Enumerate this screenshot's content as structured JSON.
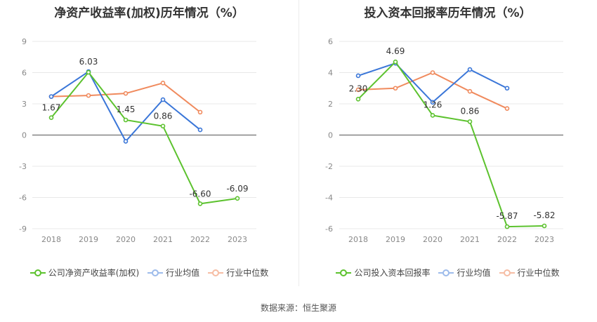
{
  "source": "数据来源：恒生聚源",
  "chart_data": [
    {
      "type": "line",
      "title": "净资产收益率(加权)历年情况（%）",
      "categories": [
        "2018",
        "2019",
        "2020",
        "2021",
        "2022",
        "2023"
      ],
      "ylim": [
        -9,
        9
      ],
      "yticks": [
        9,
        6,
        3,
        0,
        -3,
        -6,
        -9
      ],
      "grid": true,
      "legend_position": "bottom",
      "series": [
        {
          "name": "公司净资产收益率(加权)",
          "color": "#5cc22e",
          "values": [
            1.67,
            6.03,
            1.45,
            0.86,
            -6.6,
            -6.09
          ],
          "labels": [
            "1.67",
            "6.03",
            "1.45",
            "0.86",
            "-6.60",
            "-6.09"
          ]
        },
        {
          "name": "行业均值",
          "color": "#3a76d8",
          "values": [
            3.7,
            6.1,
            -0.6,
            3.4,
            0.5,
            null
          ]
        },
        {
          "name": "行业中位数",
          "color": "#f08a5d",
          "values": [
            3.7,
            3.8,
            4.0,
            5.0,
            2.2,
            null
          ]
        }
      ]
    },
    {
      "type": "line",
      "title": "投入资本回报率历年情况（%）",
      "categories": [
        "2018",
        "2019",
        "2020",
        "2021",
        "2022",
        "2023"
      ],
      "ylim": [
        -6,
        6
      ],
      "yticks": [
        6,
        4,
        2,
        0,
        -2,
        -4,
        -6
      ],
      "grid": true,
      "legend_position": "bottom",
      "series": [
        {
          "name": "公司投入资本回报率",
          "color": "#5cc22e",
          "values": [
            2.3,
            4.69,
            1.26,
            0.86,
            -5.87,
            -5.82
          ],
          "labels": [
            "2.30",
            "4.69",
            "1.26",
            "0.86",
            "-5.87",
            "-5.82"
          ]
        },
        {
          "name": "行业均值",
          "color": "#3a76d8",
          "values": [
            3.8,
            4.6,
            2.1,
            4.2,
            3.0,
            null
          ]
        },
        {
          "name": "行业中位数",
          "color": "#f08a5d",
          "values": [
            2.9,
            3.0,
            4.0,
            2.8,
            1.7,
            null
          ]
        }
      ]
    }
  ]
}
